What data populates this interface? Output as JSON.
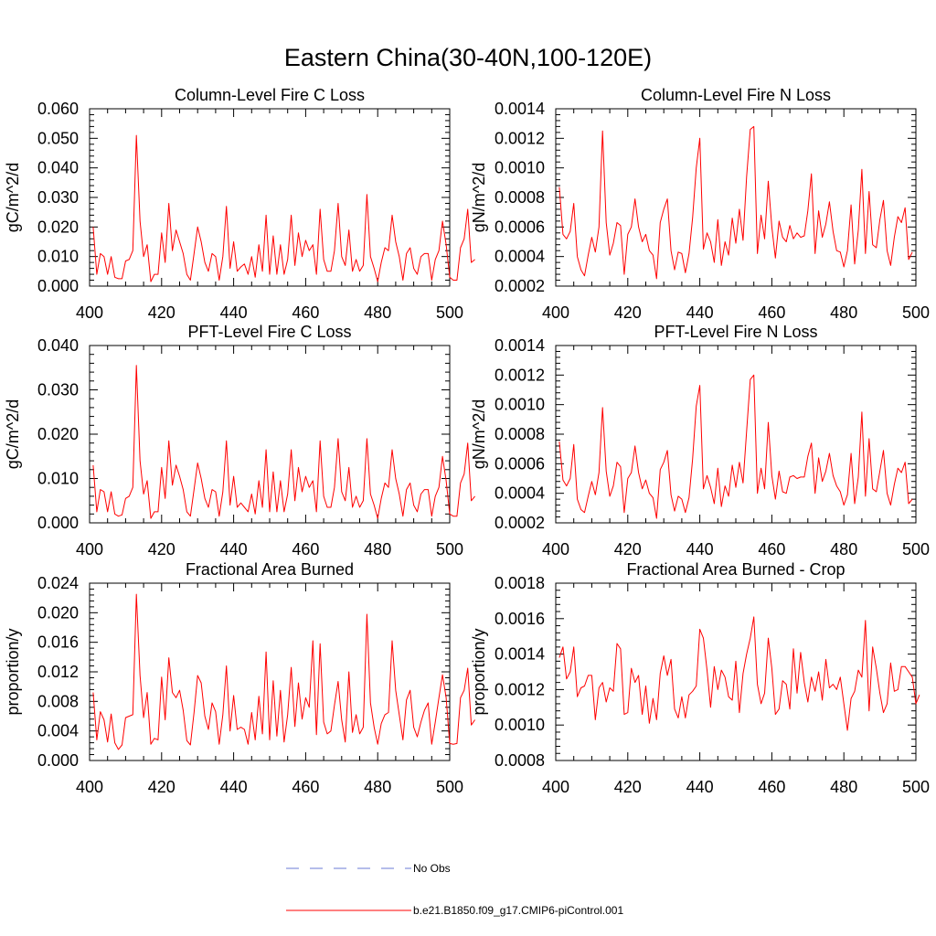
{
  "figure": {
    "title": "Eastern China(30-40N,100-120E)",
    "colors": {
      "model_line": "#ff0000",
      "obs_line": "#6b7bd6",
      "axis": "#000000"
    },
    "legend": {
      "obs_label": "No Obs",
      "model_label": "b.e21.B1850.f09_g17.CMIP6-piControl.001"
    }
  },
  "chart_data": [
    {
      "type": "line",
      "title": "Column-Level Fire C Loss",
      "ylabel": "gC/m^2/d",
      "xlabel": "",
      "xlim": [
        400,
        500
      ],
      "ylim": [
        0,
        0.06
      ],
      "xticks": [
        400,
        420,
        440,
        460,
        480,
        500
      ],
      "xtick_labels": [
        "400",
        "420",
        "440",
        "460",
        "480",
        "500"
      ],
      "yticks": [
        0,
        0.01,
        0.02,
        0.03,
        0.04,
        0.05,
        0.06
      ],
      "ytick_labels": [
        "0.000",
        "0.010",
        "0.020",
        "0.030",
        "0.040",
        "0.050",
        "0.060"
      ],
      "series": [
        {
          "name": "b.e21.B1850.f09_g17.CMIP6-piControl.001",
          "x_start": 401,
          "values": [
            0.02,
            0.004,
            0.011,
            0.01,
            0.004,
            0.01,
            0.003,
            0.0025,
            0.0025,
            0.0085,
            0.009,
            0.012,
            0.051,
            0.022,
            0.01,
            0.014,
            0.0015,
            0.004,
            0.004,
            0.018,
            0.008,
            0.028,
            0.012,
            0.019,
            0.015,
            0.011,
            0.004,
            0.002,
            0.011,
            0.02,
            0.015,
            0.008,
            0.005,
            0.011,
            0.01,
            0.002,
            0.01,
            0.027,
            0.006,
            0.015,
            0.005,
            0.0065,
            0.0075,
            0.004,
            0.01,
            0.003,
            0.014,
            0.005,
            0.024,
            0.004,
            0.017,
            0.004,
            0.014,
            0.004,
            0.009,
            0.024,
            0.007,
            0.018,
            0.01,
            0.0155,
            0.012,
            0.014,
            0.004,
            0.026,
            0.009,
            0.005,
            0.005,
            0.012,
            0.028,
            0.01,
            0.007,
            0.019,
            0.005,
            0.009,
            0.005,
            0.007,
            0.031,
            0.01,
            0.006,
            0.0015,
            0.008,
            0.013,
            0.012,
            0.024,
            0.015,
            0.01,
            0.002,
            0.011,
            0.013,
            0.006,
            0.004,
            0.01,
            0.011,
            0.011,
            0.002,
            0.009,
            0.012,
            0.022,
            0.014,
            0.003,
            0.002,
            0.002,
            0.013,
            0.016,
            0.026,
            0.008,
            0.009
          ]
        }
      ]
    },
    {
      "type": "line",
      "title": "Column-Level Fire N Loss",
      "ylabel": "gN/m^2/d",
      "xlabel": "",
      "xlim": [
        400,
        500
      ],
      "ylim": [
        0.0002,
        0.0014
      ],
      "xticks": [
        400,
        420,
        440,
        460,
        480,
        500
      ],
      "xtick_labels": [
        "400",
        "420",
        "440",
        "460",
        "480",
        "500"
      ],
      "yticks": [
        0.0002,
        0.0004,
        0.0006,
        0.0008,
        0.001,
        0.0012,
        0.0014
      ],
      "ytick_labels": [
        "0.0002",
        "0.0004",
        "0.0006",
        "0.0008",
        "0.0010",
        "0.0012",
        "0.0014"
      ],
      "series": [
        {
          "name": "b.e21.B1850.f09_g17.CMIP6-piControl.001",
          "x_start": 401,
          "values": [
            0.00087,
            0.00055,
            0.00052,
            0.00057,
            0.00076,
            0.0004,
            0.00031,
            0.00027,
            0.00041,
            0.00053,
            0.00043,
            0.0006,
            0.00125,
            0.00063,
            0.00041,
            0.00049,
            0.00063,
            0.00061,
            0.00028,
            0.00055,
            0.0006,
            0.00079,
            0.0006,
            0.0005,
            0.00055,
            0.00044,
            0.00041,
            0.00025,
            0.00063,
            0.00072,
            0.00079,
            0.00044,
            0.00031,
            0.00043,
            0.00042,
            0.00029,
            0.00042,
            0.00066,
            0.001,
            0.0012,
            0.00045,
            0.00056,
            0.0005,
            0.00036,
            0.00065,
            0.00034,
            0.0005,
            0.00041,
            0.00066,
            0.00049,
            0.00072,
            0.00051,
            0.00094,
            0.00126,
            0.00128,
            0.00042,
            0.00068,
            0.00052,
            0.00091,
            0.0006,
            0.00039,
            0.00064,
            0.00053,
            0.0005,
            0.00061,
            0.00052,
            0.00056,
            0.00053,
            0.00054,
            0.00071,
            0.00096,
            0.00042,
            0.00071,
            0.00053,
            0.00062,
            0.00077,
            0.00057,
            0.00044,
            0.00043,
            0.00033,
            0.00044,
            0.00075,
            0.00035,
            0.00058,
            0.00099,
            0.00042,
            0.00084,
            0.00048,
            0.00046,
            0.00065,
            0.00078,
            0.00044,
            0.00034,
            0.00053,
            0.00067,
            0.00063,
            0.00073,
            0.00038,
            0.00043
          ]
        }
      ]
    },
    {
      "type": "line",
      "title": "PFT-Level Fire C Loss",
      "ylabel": "gC/m^2/d",
      "xlabel": "",
      "xlim": [
        400,
        500
      ],
      "ylim": [
        0,
        0.04
      ],
      "xticks": [
        400,
        420,
        440,
        460,
        480,
        500
      ],
      "xtick_labels": [
        "400",
        "420",
        "440",
        "460",
        "480",
        "500"
      ],
      "yticks": [
        0,
        0.01,
        0.02,
        0.03,
        0.04
      ],
      "ytick_labels": [
        "0.000",
        "0.010",
        "0.020",
        "0.030",
        "0.040"
      ],
      "series": [
        {
          "name": "b.e21.B1850.f09_g17.CMIP6-piControl.001",
          "x_start": 401,
          "values": [
            0.013,
            0.0025,
            0.0075,
            0.007,
            0.0025,
            0.007,
            0.002,
            0.0015,
            0.0018,
            0.0055,
            0.006,
            0.008,
            0.0355,
            0.014,
            0.0065,
            0.0095,
            0.001,
            0.0025,
            0.0025,
            0.0125,
            0.0055,
            0.0185,
            0.0085,
            0.013,
            0.0105,
            0.0075,
            0.0025,
            0.0015,
            0.0075,
            0.0135,
            0.01,
            0.0055,
            0.0035,
            0.0075,
            0.007,
            0.0015,
            0.007,
            0.0185,
            0.004,
            0.0105,
            0.0035,
            0.0045,
            0.0035,
            0.0025,
            0.0065,
            0.002,
            0.0095,
            0.0035,
            0.0165,
            0.0025,
            0.0115,
            0.0025,
            0.0095,
            0.0025,
            0.0065,
            0.0165,
            0.005,
            0.0125,
            0.007,
            0.0105,
            0.008,
            0.0095,
            0.0025,
            0.0185,
            0.006,
            0.0035,
            0.0035,
            0.008,
            0.019,
            0.007,
            0.005,
            0.0125,
            0.0035,
            0.006,
            0.0035,
            0.005,
            0.019,
            0.0065,
            0.004,
            0.001,
            0.0055,
            0.009,
            0.008,
            0.0165,
            0.01,
            0.0065,
            0.0015,
            0.0075,
            0.009,
            0.004,
            0.0025,
            0.0065,
            0.0075,
            0.0075,
            0.0015,
            0.006,
            0.008,
            0.015,
            0.0095,
            0.002,
            0.0015,
            0.0015,
            0.009,
            0.011,
            0.018,
            0.005,
            0.006
          ]
        }
      ]
    },
    {
      "type": "line",
      "title": "PFT-Level Fire N Loss",
      "ylabel": "gN/m^2/d",
      "xlabel": "",
      "xlim": [
        400,
        500
      ],
      "ylim": [
        0.0002,
        0.0014
      ],
      "xticks": [
        400,
        420,
        440,
        460,
        480,
        500
      ],
      "xtick_labels": [
        "400",
        "420",
        "440",
        "460",
        "480",
        "500"
      ],
      "yticks": [
        0.0002,
        0.0004,
        0.0006,
        0.0008,
        0.001,
        0.0012,
        0.0014
      ],
      "ytick_labels": [
        "0.0002",
        "0.0004",
        "0.0006",
        "0.0008",
        "0.0010",
        "0.0012",
        "0.0014"
      ],
      "series": [
        {
          "name": "b.e21.B1850.f09_g17.CMIP6-piControl.001",
          "x_start": 401,
          "values": [
            0.00075,
            0.00049,
            0.00045,
            0.0005,
            0.00073,
            0.00036,
            0.00029,
            0.00027,
            0.00038,
            0.00048,
            0.00039,
            0.00054,
            0.00098,
            0.00055,
            0.00038,
            0.00045,
            0.00061,
            0.00058,
            0.00027,
            0.0005,
            0.00054,
            0.00072,
            0.00054,
            0.00043,
            0.00049,
            0.0004,
            0.00037,
            0.00023,
            0.00056,
            0.00061,
            0.00069,
            0.00039,
            0.00028,
            0.00038,
            0.00036,
            0.00027,
            0.00037,
            0.00063,
            0.00099,
            0.00113,
            0.00043,
            0.00052,
            0.00044,
            0.00033,
            0.00057,
            0.00031,
            0.00045,
            0.00038,
            0.00059,
            0.00044,
            0.00061,
            0.00047,
            0.00082,
            0.00117,
            0.0012,
            0.0004,
            0.00057,
            0.00043,
            0.00088,
            0.00052,
            0.00036,
            0.00055,
            0.00041,
            0.0004,
            0.00051,
            0.00052,
            0.0005,
            0.00051,
            0.00051,
            0.00065,
            0.00074,
            0.0004,
            0.00064,
            0.00048,
            0.00055,
            0.00067,
            0.00052,
            0.00045,
            0.00041,
            0.00032,
            0.00039,
            0.00067,
            0.00033,
            0.00051,
            0.00095,
            0.00038,
            0.00077,
            0.00043,
            0.00041,
            0.00055,
            0.00069,
            0.0004,
            0.00032,
            0.00046,
            0.00057,
            0.00054,
            0.00061,
            0.00033,
            0.00036
          ]
        }
      ]
    },
    {
      "type": "line",
      "title": "Fractional Area Burned",
      "ylabel": "proportion/y",
      "xlabel": "",
      "xlim": [
        400,
        500
      ],
      "ylim": [
        0,
        0.024
      ],
      "xticks": [
        400,
        420,
        440,
        460,
        480,
        500
      ],
      "xtick_labels": [
        "400",
        "420",
        "440",
        "460",
        "480",
        "500"
      ],
      "yticks": [
        0,
        0.004,
        0.008,
        0.012,
        0.016,
        0.02,
        0.024
      ],
      "ytick_labels": [
        "0.000",
        "0.004",
        "0.008",
        "0.012",
        "0.016",
        "0.020",
        "0.024"
      ],
      "series": [
        {
          "name": "b.e21.B1850.f09_g17.CMIP6-piControl.001",
          "x_start": 401,
          "values": [
            0.0092,
            0.0028,
            0.0066,
            0.0055,
            0.0025,
            0.0063,
            0.0024,
            0.0015,
            0.0021,
            0.0058,
            0.006,
            0.0062,
            0.0225,
            0.0115,
            0.0058,
            0.0092,
            0.0022,
            0.003,
            0.0028,
            0.0113,
            0.0055,
            0.0139,
            0.0092,
            0.0085,
            0.0095,
            0.0068,
            0.0027,
            0.0021,
            0.0065,
            0.0115,
            0.0105,
            0.006,
            0.0042,
            0.0078,
            0.0066,
            0.0022,
            0.0062,
            0.0128,
            0.004,
            0.0088,
            0.0042,
            0.0045,
            0.0042,
            0.0022,
            0.0065,
            0.0028,
            0.0087,
            0.0036,
            0.0147,
            0.0028,
            0.0108,
            0.0033,
            0.0095,
            0.0025,
            0.0062,
            0.0126,
            0.0046,
            0.0105,
            0.0056,
            0.0085,
            0.0072,
            0.0162,
            0.0035,
            0.0158,
            0.0052,
            0.0036,
            0.004,
            0.0075,
            0.0107,
            0.0055,
            0.0025,
            0.012,
            0.0038,
            0.0062,
            0.0036,
            0.0045,
            0.0198,
            0.0078,
            0.0045,
            0.0022,
            0.005,
            0.0062,
            0.0065,
            0.0162,
            0.0095,
            0.0062,
            0.0028,
            0.0082,
            0.0095,
            0.0045,
            0.0032,
            0.0052,
            0.0068,
            0.0078,
            0.0022,
            0.0052,
            0.0085,
            0.0116,
            0.0085,
            0.0023,
            0.0022,
            0.0023,
            0.0085,
            0.0095,
            0.0125,
            0.0048,
            0.0055
          ]
        }
      ]
    },
    {
      "type": "line",
      "title": "Fractional Area Burned - Crop",
      "ylabel": "proportion/y",
      "xlabel": "",
      "xlim": [
        400,
        500
      ],
      "ylim": [
        0.0008,
        0.0018
      ],
      "xticks": [
        400,
        420,
        440,
        460,
        480,
        500
      ],
      "xtick_labels": [
        "400",
        "420",
        "440",
        "460",
        "480",
        "500"
      ],
      "yticks": [
        0.0008,
        0.001,
        0.0012,
        0.0014,
        0.0016,
        0.0018
      ],
      "ytick_labels": [
        "0.0008",
        "0.0010",
        "0.0012",
        "0.0014",
        "0.0016",
        "0.0018"
      ],
      "series": [
        {
          "name": "b.e21.B1850.f09_g17.CMIP6-piControl.001",
          "x_start": 401,
          "values": [
            0.00138,
            0.00144,
            0.00126,
            0.0013,
            0.00144,
            0.00116,
            0.00121,
            0.00122,
            0.00128,
            0.00128,
            0.00103,
            0.00121,
            0.00124,
            0.00113,
            0.00121,
            0.00119,
            0.00146,
            0.00143,
            0.00106,
            0.00107,
            0.00132,
            0.00124,
            0.00128,
            0.00106,
            0.00122,
            0.00101,
            0.00115,
            0.00103,
            0.00129,
            0.00139,
            0.00128,
            0.00137,
            0.00109,
            0.00104,
            0.00116,
            0.00104,
            0.00117,
            0.00119,
            0.00122,
            0.00154,
            0.00149,
            0.00131,
            0.0011,
            0.00133,
            0.0012,
            0.00131,
            0.00127,
            0.00116,
            0.00114,
            0.00136,
            0.00107,
            0.00129,
            0.0014,
            0.00149,
            0.00161,
            0.00123,
            0.00112,
            0.00118,
            0.00149,
            0.00132,
            0.00106,
            0.00109,
            0.00125,
            0.00123,
            0.00109,
            0.00143,
            0.00118,
            0.00141,
            0.00124,
            0.00113,
            0.00127,
            0.00119,
            0.0013,
            0.00114,
            0.00137,
            0.00121,
            0.00123,
            0.0012,
            0.00127,
            0.00112,
            0.00097,
            0.00115,
            0.00119,
            0.00131,
            0.00127,
            0.00159,
            0.00108,
            0.00144,
            0.00132,
            0.00118,
            0.00107,
            0.00112,
            0.00135,
            0.00119,
            0.0012,
            0.00133,
            0.00133,
            0.0013,
            0.00127,
            0.00112,
            0.00117
          ]
        }
      ]
    }
  ]
}
